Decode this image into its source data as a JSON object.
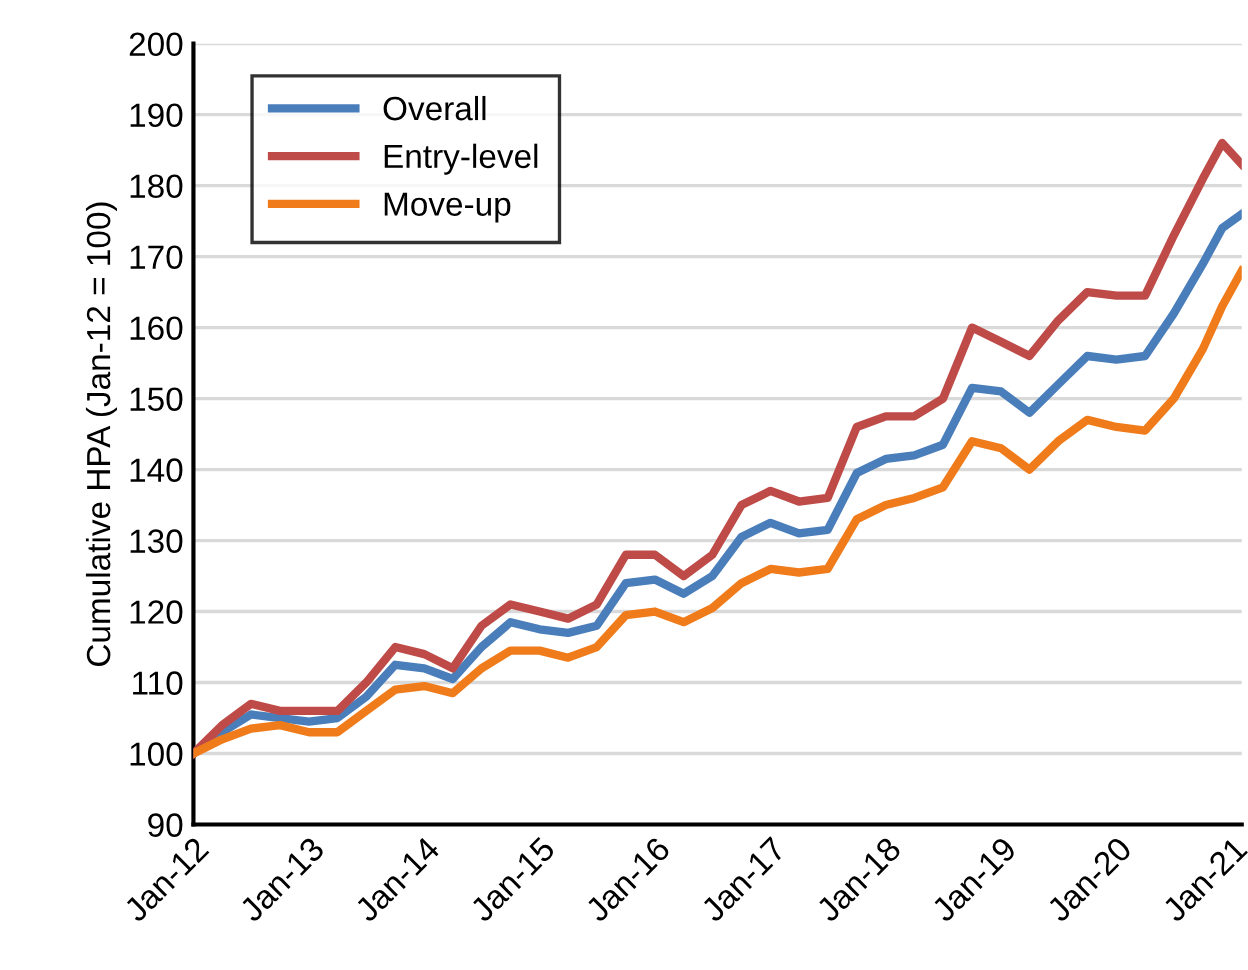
{
  "chart_data": {
    "type": "line",
    "ylabel": "Cumulative HPA (Jan-12 = 100)",
    "x": [
      "2012-01",
      "2012-04",
      "2012-07",
      "2012-10",
      "2013-01",
      "2013-04",
      "2013-07",
      "2013-10",
      "2014-01",
      "2014-04",
      "2014-07",
      "2014-10",
      "2015-01",
      "2015-04",
      "2015-07",
      "2015-10",
      "2016-01",
      "2016-04",
      "2016-07",
      "2016-10",
      "2017-01",
      "2017-04",
      "2017-07",
      "2017-10",
      "2018-01",
      "2018-04",
      "2018-07",
      "2018-10",
      "2019-01",
      "2019-04",
      "2019-07",
      "2019-10",
      "2020-01",
      "2020-04",
      "2020-07",
      "2020-10",
      "2020-12",
      "2021-02"
    ],
    "series": [
      {
        "name": "Overall",
        "color": "#4a7ebb",
        "values": [
          100,
          103,
          105.5,
          105,
          104.5,
          105,
          108,
          112.5,
          112,
          110.5,
          115,
          118.5,
          117.5,
          117,
          118,
          124,
          124.5,
          122.5,
          125,
          130.5,
          132.5,
          131,
          131.5,
          139.5,
          141.5,
          142,
          143.5,
          151.5,
          151,
          148,
          152,
          156,
          155.5,
          156,
          162,
          169,
          174,
          176
        ]
      },
      {
        "name": "Entry-level",
        "color": "#be4b48",
        "values": [
          100,
          104,
          107,
          106,
          106,
          106,
          110,
          115,
          114,
          112,
          118,
          121,
          120,
          119,
          121,
          128,
          128,
          125,
          128,
          135,
          137,
          135.5,
          136,
          146,
          147.5,
          147.5,
          150,
          160,
          158,
          156,
          161,
          165,
          164.5,
          164.5,
          173,
          181,
          186,
          183
        ]
      },
      {
        "name": "Move-up",
        "color": "#f07b1a",
        "values": [
          100,
          102,
          103.5,
          104,
          103,
          103,
          106,
          109,
          109.5,
          108.5,
          112,
          114.5,
          114.5,
          113.5,
          115,
          119.5,
          120,
          118.5,
          120.5,
          124,
          126,
          125.5,
          126,
          133,
          135,
          136,
          137.5,
          144,
          143,
          140,
          144,
          147,
          146,
          145.5,
          150,
          157,
          163,
          168
        ]
      }
    ],
    "xlim": [
      "2012-01",
      "2021-02"
    ],
    "xticks": [
      {
        "value": "2012-01",
        "label": "Jan-12"
      },
      {
        "value": "2013-01",
        "label": "Jan-13"
      },
      {
        "value": "2014-01",
        "label": "Jan-14"
      },
      {
        "value": "2015-01",
        "label": "Jan-15"
      },
      {
        "value": "2016-01",
        "label": "Jan-16"
      },
      {
        "value": "2017-01",
        "label": "Jan-17"
      },
      {
        "value": "2018-01",
        "label": "Jan-18"
      },
      {
        "value": "2019-01",
        "label": "Jan-19"
      },
      {
        "value": "2020-01",
        "label": "Jan-20"
      },
      {
        "value": "2021-01",
        "label": "Jan-21"
      }
    ],
    "ylim": [
      90,
      200
    ],
    "yticks": [
      90,
      100,
      110,
      120,
      130,
      140,
      150,
      160,
      170,
      180,
      190,
      200
    ],
    "grid": "y",
    "legend": "top left",
    "line_style": "solid",
    "marker": "none"
  }
}
